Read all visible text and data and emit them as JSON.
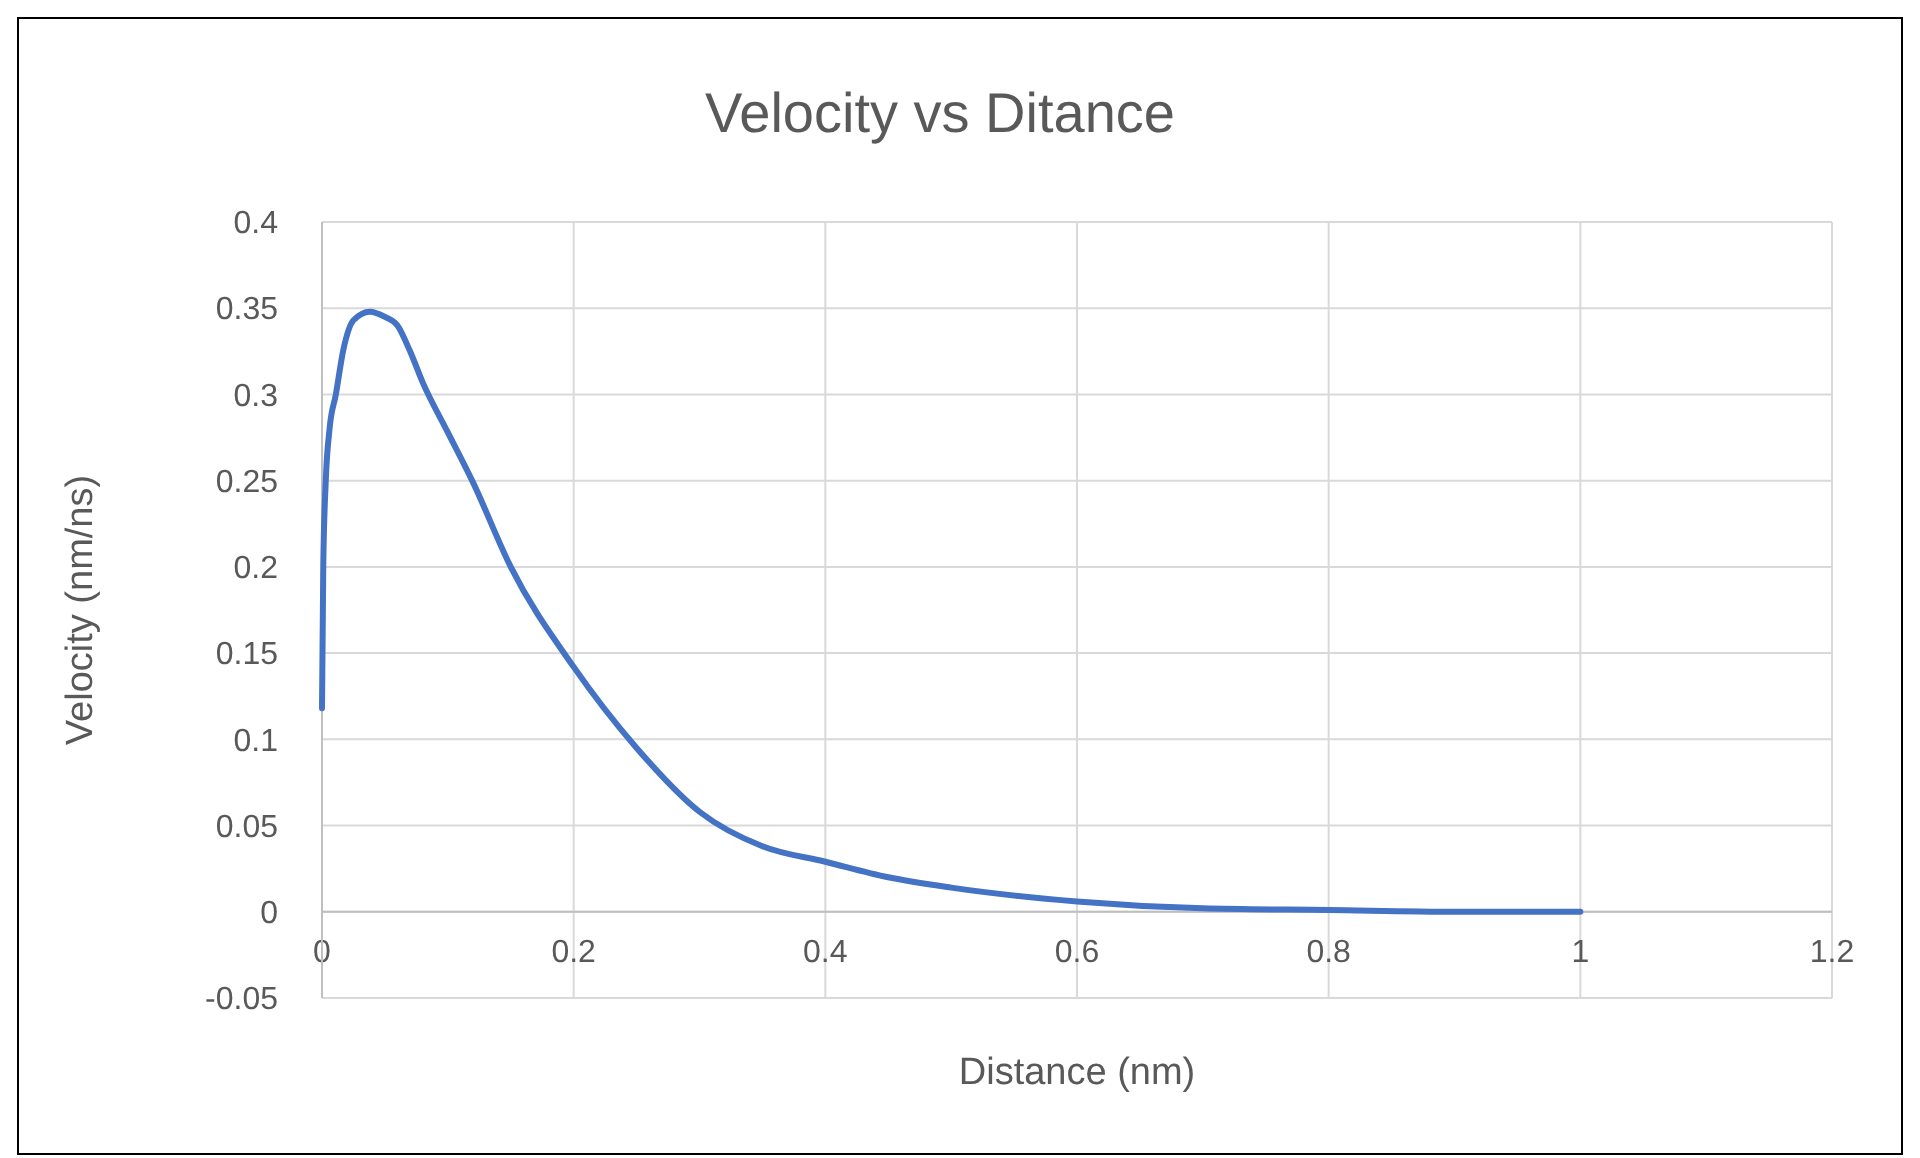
{
  "chart_data": {
    "type": "line",
    "title": "Velocity vs Ditance",
    "xlabel": "Distance (nm)",
    "ylabel": "Velocity (nm/ns)",
    "xlim": [
      0,
      1.2
    ],
    "xticks": [
      0,
      0.2,
      0.4,
      0.6,
      0.8,
      1,
      1.2
    ],
    "ylim": [
      -0.05,
      0.4
    ],
    "yticks": [
      -0.05,
      0,
      0.05,
      0.1,
      0.15,
      0.2,
      0.25,
      0.3,
      0.35,
      0.4
    ],
    "grid": true,
    "marker": "none",
    "line_style": "solid",
    "series": [
      {
        "color": "#4472c4",
        "x": [
          0,
          0.001,
          0.003,
          0.006,
          0.011,
          0.017,
          0.025,
          0.038,
          0.05,
          0.06,
          0.07,
          0.08,
          0.1,
          0.12,
          0.15,
          0.2,
          0.25,
          0.3,
          0.35,
          0.4,
          0.45,
          0.5,
          0.6,
          0.7,
          0.8,
          0.9,
          1
        ],
        "values": [
          0.118,
          0.2,
          0.25,
          0.28,
          0.3,
          0.326,
          0.343,
          0.348,
          0.345,
          0.34,
          0.325,
          0.307,
          0.278,
          0.249,
          0.2,
          0.142,
          0.095,
          0.058,
          0.038,
          0.029,
          0.02,
          0.014,
          0.006,
          0.002,
          0.001,
          0,
          0
        ]
      }
    ]
  }
}
